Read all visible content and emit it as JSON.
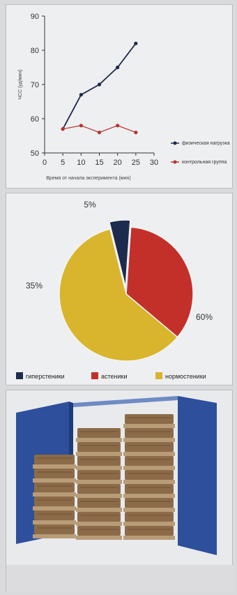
{
  "chart_data": [
    {
      "type": "line",
      "xlabel": "Время от начала эксперимента (мин)",
      "ylabel": "ЧСС (уд/мин)",
      "xlim": [
        0,
        30
      ],
      "ylim": [
        50,
        90
      ],
      "xticks": [
        "0",
        "5",
        "10",
        "15",
        "20",
        "25",
        "30"
      ],
      "yticks": [
        "50",
        "60",
        "70",
        "80",
        "90"
      ],
      "x": [
        5,
        10,
        15,
        20,
        25
      ],
      "series": [
        {
          "name": "физическая нагрузка",
          "values": [
            57,
            67,
            70,
            75,
            82
          ],
          "color": "#1f2a4a"
        },
        {
          "name": "контрольная группа",
          "values": [
            57,
            58,
            56,
            58,
            56
          ],
          "color": "#b8332e"
        }
      ],
      "grid": false,
      "legend": "right"
    },
    {
      "type": "pie",
      "slices": [
        {
          "label": "гиперстеники",
          "value": 5,
          "display": "5%",
          "color": "#1d2b4f",
          "exploded": true
        },
        {
          "label": "астеники",
          "value": 35,
          "display": "35%",
          "color": "#c3302a"
        },
        {
          "label": "нормостеники",
          "value": 60,
          "display": "60%",
          "color": "#d8b52c"
        }
      ],
      "legend": "bottom"
    }
  ],
  "colors": {
    "panel_bg": "#eeeff1",
    "page_bg": "#d9dadc",
    "wall_blue": "#2d4f9c",
    "crate_brown": "#8b6b48"
  }
}
